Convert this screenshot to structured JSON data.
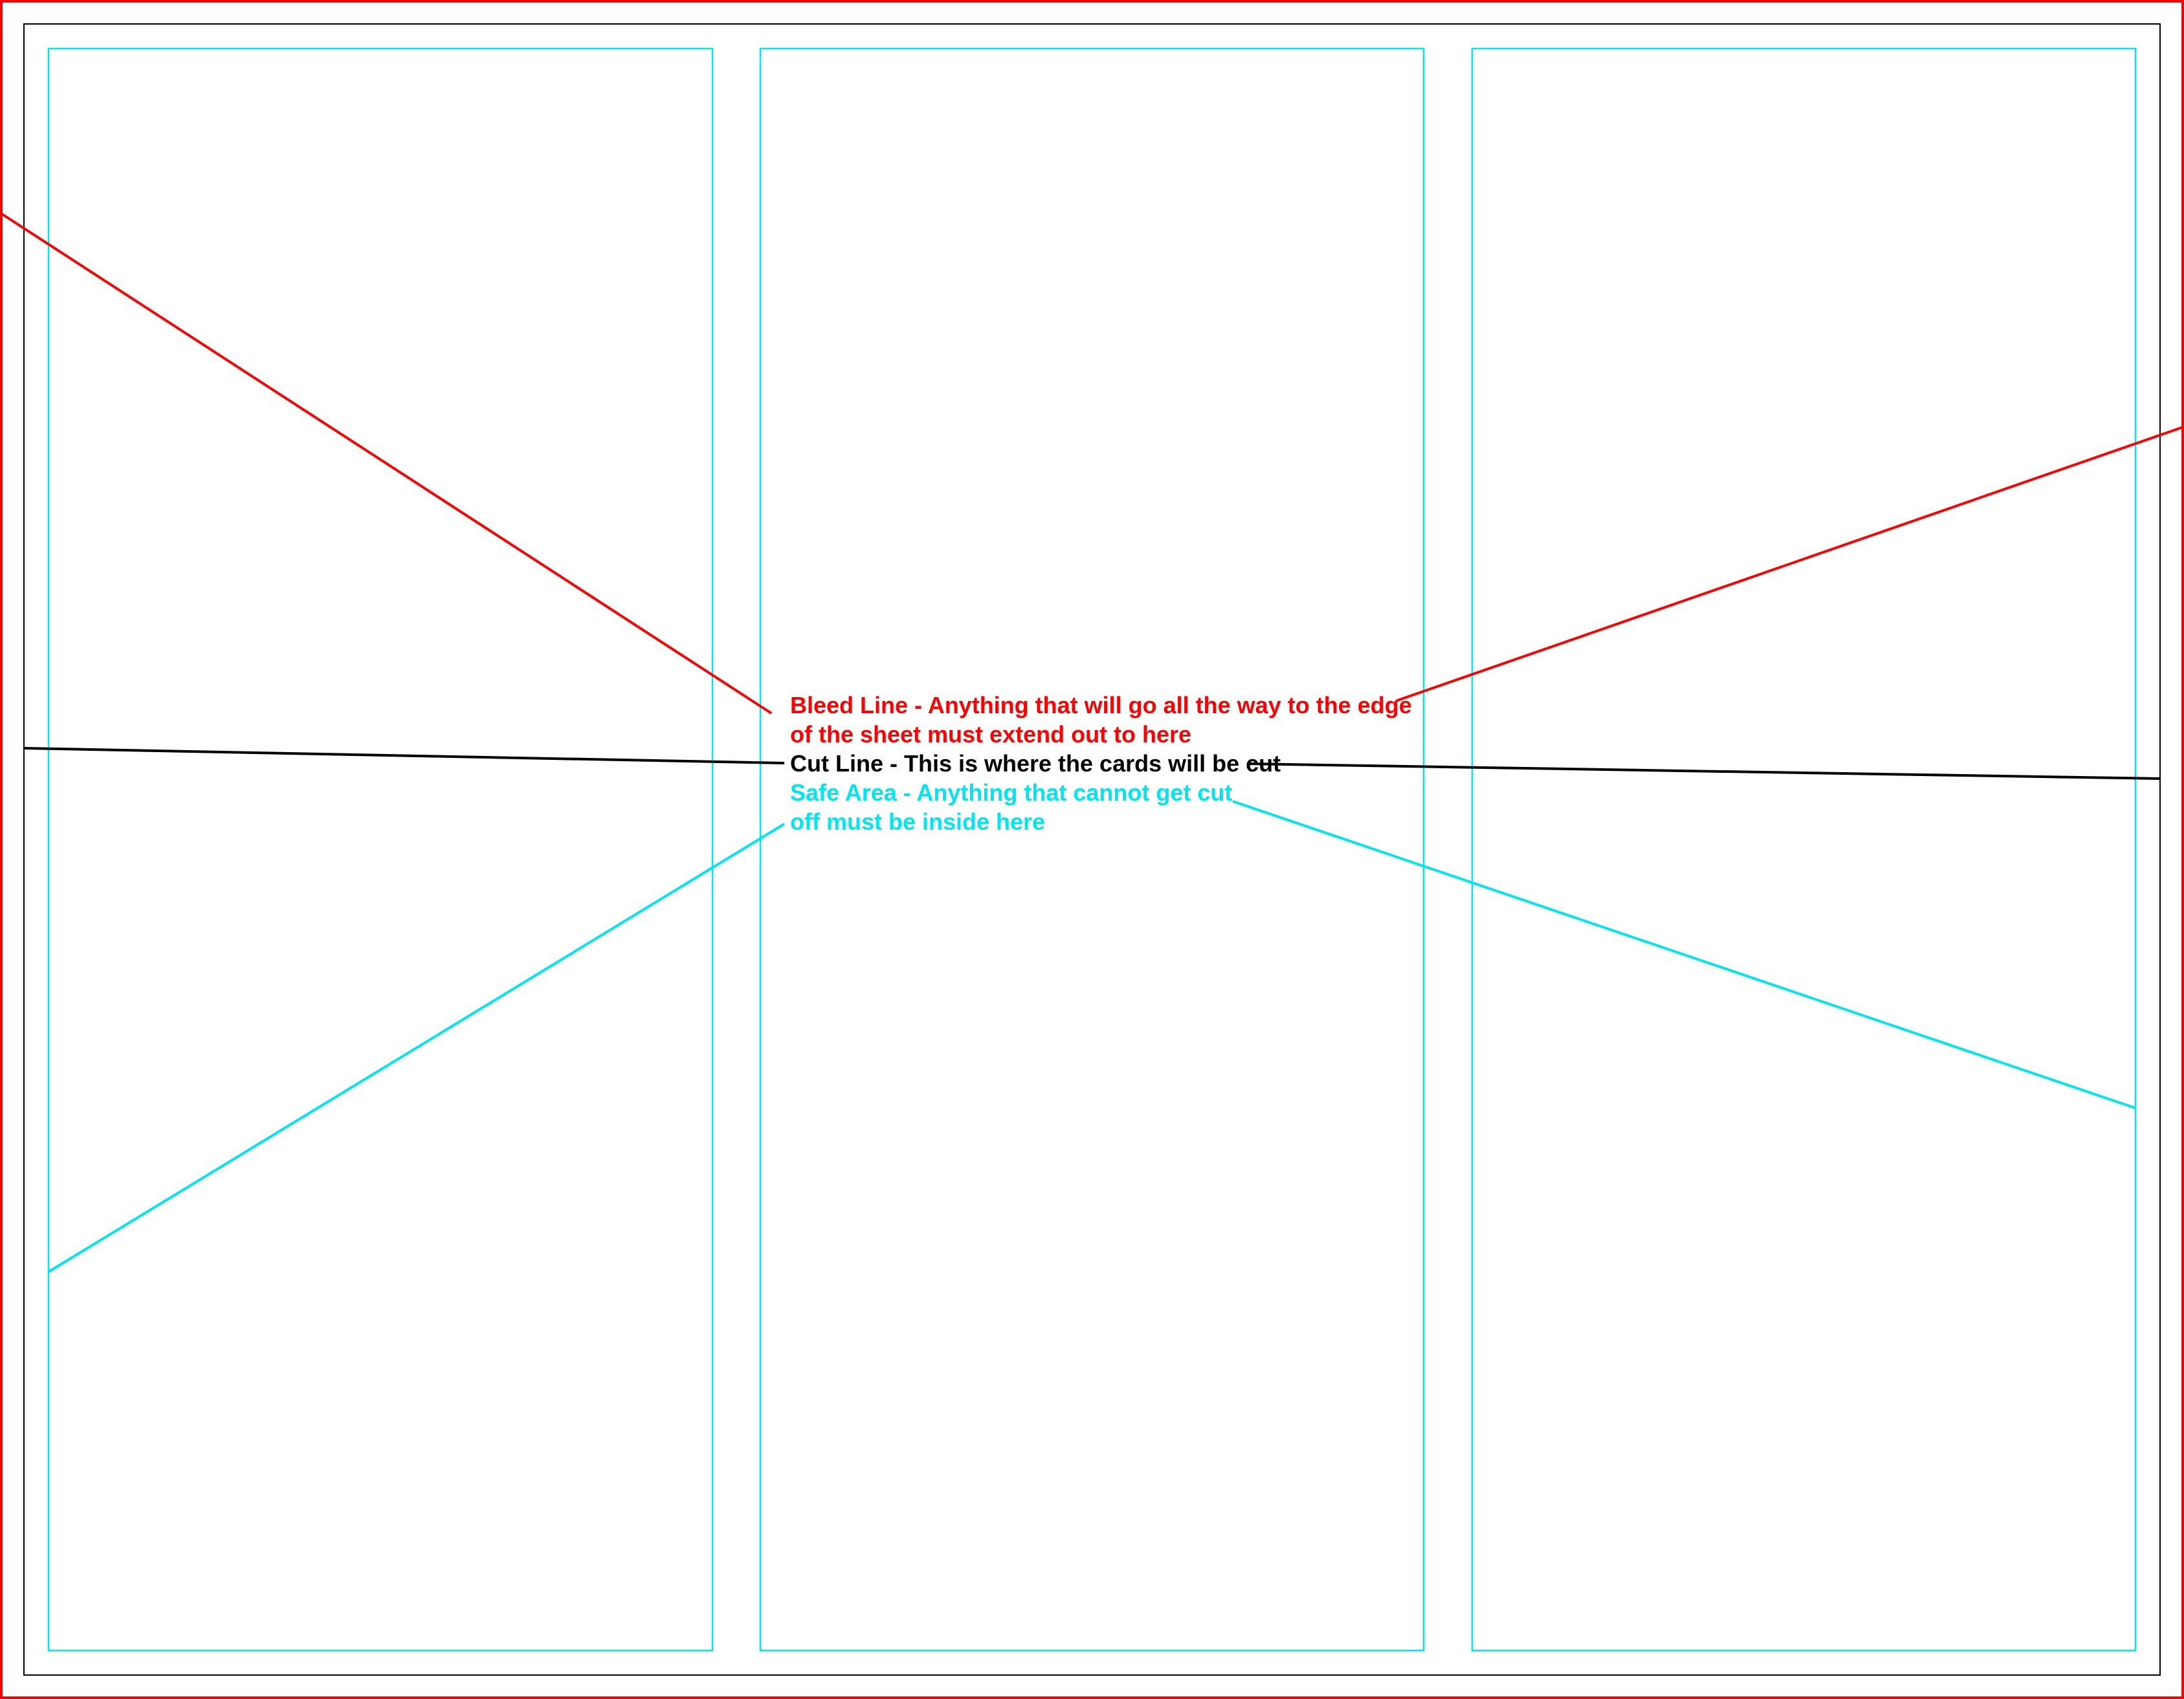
{
  "colors": {
    "bleed": "#ff0000",
    "cut": "#000000",
    "safe": "#00e5f2",
    "background": "#ffffff"
  },
  "annotations": {
    "bleed": {
      "line1": "Bleed Line - Anything that will go all the way to the edge",
      "line2": "of the sheet must extend out to here"
    },
    "cut": {
      "line1": "Cut Line - This is where the cards will be cut"
    },
    "safe": {
      "line1": "Safe Area - Anything that cannot get cut",
      "line2": "off must be inside here"
    }
  }
}
